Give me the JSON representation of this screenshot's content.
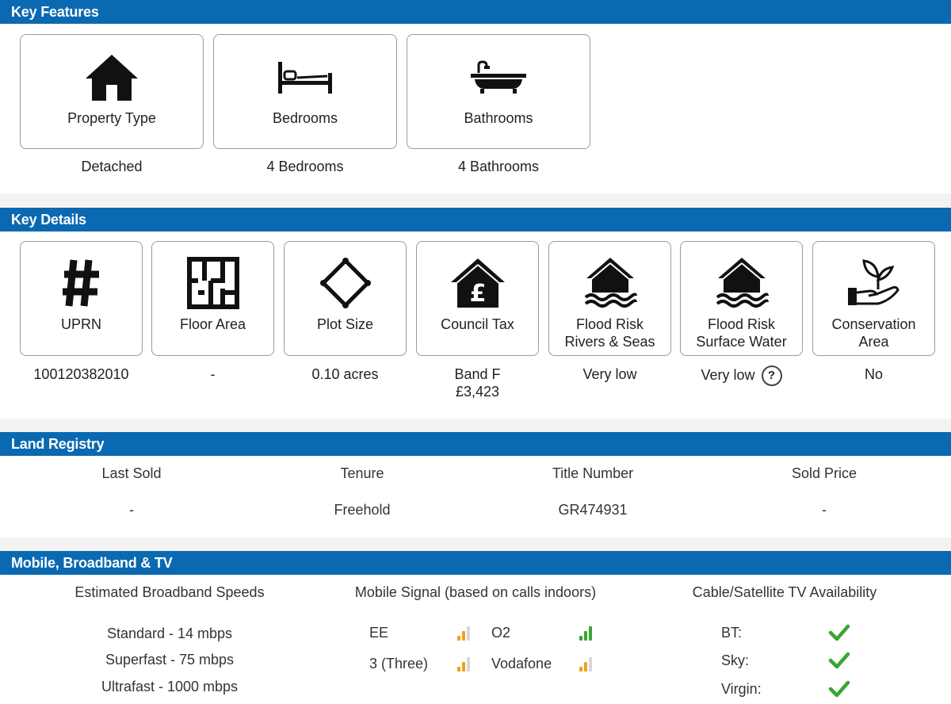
{
  "key_features": {
    "title": "Key Features",
    "cards": [
      {
        "label": "Property Type",
        "value": "Detached",
        "icon": "house-icon"
      },
      {
        "label": "Bedrooms",
        "value": "4 Bedrooms",
        "icon": "bed-icon"
      },
      {
        "label": "Bathrooms",
        "value": "4 Bathrooms",
        "icon": "bathtub-icon"
      }
    ]
  },
  "key_details": {
    "title": "Key Details",
    "cards": [
      {
        "label": "UPRN",
        "value": "100120382010",
        "icon": "hash-icon"
      },
      {
        "label": "Floor Area",
        "value": "-",
        "icon": "floor-plan-icon"
      },
      {
        "label": "Plot Size",
        "value": "0.10 acres",
        "icon": "plot-icon"
      },
      {
        "label": "Council Tax",
        "value": "Band F",
        "value2": "£3,423",
        "icon": "pound-house-icon"
      },
      {
        "label": "Flood Risk",
        "label2": "Rivers & Seas",
        "value": "Very low",
        "icon": "flood-house-icon"
      },
      {
        "label": "Flood Risk",
        "label2": "Surface Water",
        "value": "Very low",
        "help": "?",
        "icon": "flood-house-icon"
      },
      {
        "label": "Conservation",
        "label2": "Area",
        "value": "No",
        "icon": "plant-hand-icon"
      }
    ]
  },
  "land_registry": {
    "title": "Land Registry",
    "columns": [
      {
        "header": "Last Sold",
        "value": "-"
      },
      {
        "header": "Tenure",
        "value": "Freehold"
      },
      {
        "header": "Title Number",
        "value": "GR474931"
      },
      {
        "header": "Sold Price",
        "value": "-"
      }
    ]
  },
  "mobile": {
    "title": "Mobile, Broadband & TV",
    "broadband_header": "Estimated Broadband Speeds",
    "speeds": [
      "Standard - 14 mbps",
      "Superfast - 75 mbps",
      "Ultrafast - 1000 mbps"
    ],
    "signal_header": "Mobile Signal (based on calls indoors)",
    "operators": [
      {
        "name": "EE",
        "bars": 2,
        "color": "#f0a21a"
      },
      {
        "name": "O2",
        "bars": 3,
        "color": "#3aa534"
      },
      {
        "name": "3 (Three)",
        "bars": 2,
        "color": "#f0a21a"
      },
      {
        "name": "Vodafone",
        "bars": 2,
        "color": "#f0a21a"
      }
    ],
    "tv_header": "Cable/Satellite TV Availability",
    "tv": [
      {
        "name": "BT:",
        "available": true
      },
      {
        "name": "Sky:",
        "available": true
      },
      {
        "name": "Virgin:",
        "available": true
      }
    ]
  },
  "colors": {
    "header_bar": "#0a69b1",
    "tick": "#3aa534",
    "signal_amber": "#f0a21a",
    "signal_green": "#3aa534"
  }
}
